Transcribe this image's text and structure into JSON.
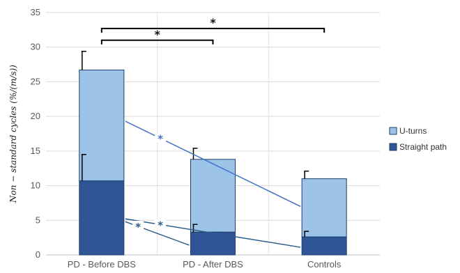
{
  "chart_data": {
    "type": "bar",
    "stacked": true,
    "categories": [
      "PD - Before DBS",
      "PD - After DBS",
      "Controls"
    ],
    "series": [
      {
        "name": "Straight path",
        "values": [
          10.7,
          3.3,
          2.6
        ],
        "error": [
          3.8,
          1.1,
          0.8
        ],
        "color": "#2f5597"
      },
      {
        "name": "U-turns",
        "values": [
          16.0,
          10.5,
          8.4
        ],
        "error": [
          2.7,
          1.6,
          1.1
        ],
        "color": "#9dc3e6"
      }
    ],
    "ylabel": "Non − standard cycles  (%/(m/s))",
    "ylim": [
      0,
      35
    ],
    "yticks": [
      "0",
      "5",
      "10",
      "15",
      "20",
      "25",
      "30",
      "35"
    ],
    "grid": true,
    "legend_position": "right",
    "significance": {
      "brackets": [
        {
          "from": "PD - Before DBS",
          "to": "PD - After DBS",
          "label": "*",
          "y": 31
        },
        {
          "from": "PD - Before DBS",
          "to": "Controls",
          "label": "*",
          "y": 32.7
        }
      ],
      "lines": [
        {
          "series": "U-turns",
          "from": "PD - Before DBS",
          "to": "Controls",
          "y_from": 19.3,
          "y_to": 7.0,
          "label": "*",
          "color": "#4472c4"
        },
        {
          "series": "Straight path",
          "from": "PD - Before DBS",
          "to": "Controls",
          "y_from": 5.2,
          "y_to": 1.1,
          "label": "*",
          "color": "#2e5c8a"
        },
        {
          "series": "Straight path",
          "from": "PD - Before DBS",
          "to": "PD - After DBS",
          "y_from": 4.8,
          "y_to": 1.4,
          "label": "*",
          "color": "#2e5c8a"
        }
      ]
    }
  }
}
